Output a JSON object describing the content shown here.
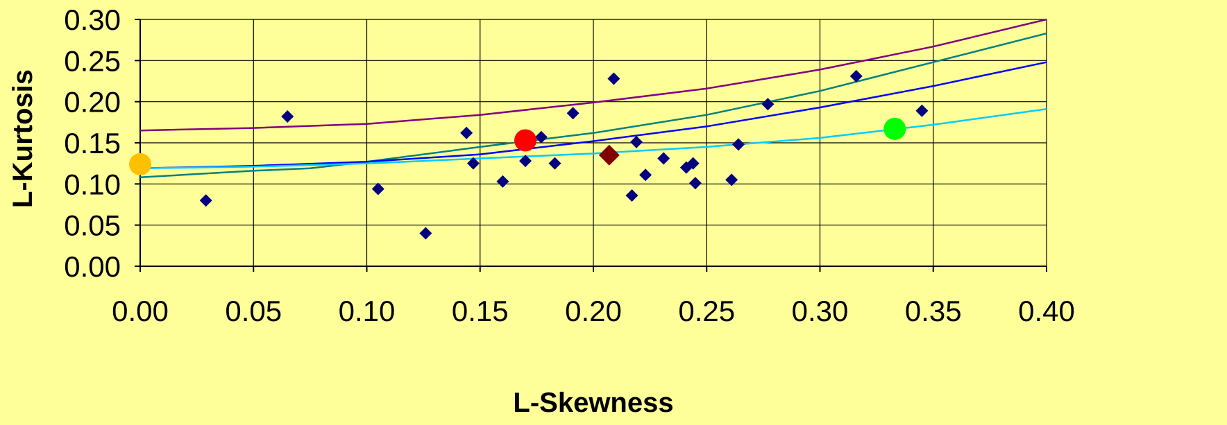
{
  "chart_data": {
    "type": "scatter",
    "xlabel": "L-Skewness",
    "ylabel": "L-Kurtosis",
    "xlim": [
      0,
      0.4
    ],
    "ylim": [
      0,
      0.3
    ],
    "x_ticks": [
      "0.00",
      "0.05",
      "0.10",
      "0.15",
      "0.20",
      "0.25",
      "0.30",
      "0.35",
      "0.40"
    ],
    "y_ticks": [
      "0.00",
      "0.05",
      "0.10",
      "0.15",
      "0.20",
      "0.25",
      "0.30"
    ],
    "grid": true,
    "colors": {
      "background": "#FFFF99",
      "plot_background": "#FFFF99",
      "grid": "#000000",
      "points": "#000080"
    },
    "curves": [
      {
        "color": "#800080",
        "x": [
          0,
          0.05,
          0.1,
          0.15,
          0.2,
          0.25,
          0.3,
          0.35,
          0.4
        ],
        "y": [
          0.165,
          0.168,
          0.173,
          0.184,
          0.199,
          0.216,
          0.239,
          0.267,
          0.3
        ]
      },
      {
        "color": "#008080",
        "x": [
          0,
          0.05,
          0.075,
          0.1,
          0.15,
          0.2,
          0.25,
          0.3,
          0.35,
          0.4
        ],
        "y": [
          0.108,
          0.116,
          0.119,
          0.127,
          0.145,
          0.162,
          0.184,
          0.213,
          0.248,
          0.283
        ]
      },
      {
        "color": "#0000FF",
        "x": [
          0,
          0.05,
          0.1,
          0.15,
          0.2,
          0.25,
          0.3,
          0.35,
          0.4
        ],
        "y": [
          0.119,
          0.122,
          0.127,
          0.136,
          0.152,
          0.17,
          0.193,
          0.219,
          0.248
        ]
      },
      {
        "color": "#00CCFF",
        "x": [
          0,
          0.05,
          0.1,
          0.15,
          0.2,
          0.25,
          0.3,
          0.35,
          0.4
        ],
        "y": [
          0.119,
          0.121,
          0.125,
          0.131,
          0.137,
          0.145,
          0.156,
          0.172,
          0.191
        ]
      }
    ],
    "points": [
      {
        "x": 0.029,
        "y": 0.08
      },
      {
        "x": 0.065,
        "y": 0.182
      },
      {
        "x": 0.105,
        "y": 0.094
      },
      {
        "x": 0.126,
        "y": 0.04
      },
      {
        "x": 0.144,
        "y": 0.162
      },
      {
        "x": 0.147,
        "y": 0.125
      },
      {
        "x": 0.16,
        "y": 0.103
      },
      {
        "x": 0.17,
        "y": 0.128
      },
      {
        "x": 0.177,
        "y": 0.157
      },
      {
        "x": 0.183,
        "y": 0.125
      },
      {
        "x": 0.191,
        "y": 0.186
      },
      {
        "x": 0.209,
        "y": 0.228
      },
      {
        "x": 0.217,
        "y": 0.086
      },
      {
        "x": 0.219,
        "y": 0.151
      },
      {
        "x": 0.223,
        "y": 0.111
      },
      {
        "x": 0.231,
        "y": 0.131
      },
      {
        "x": 0.241,
        "y": 0.12
      },
      {
        "x": 0.244,
        "y": 0.125
      },
      {
        "x": 0.245,
        "y": 0.101
      },
      {
        "x": 0.261,
        "y": 0.105
      },
      {
        "x": 0.264,
        "y": 0.148
      },
      {
        "x": 0.277,
        "y": 0.197
      },
      {
        "x": 0.316,
        "y": 0.231
      },
      {
        "x": 0.345,
        "y": 0.189
      }
    ],
    "highlights": [
      {
        "x": 0.0,
        "y": 0.124,
        "color": "#FFC000",
        "shape": "circle"
      },
      {
        "x": 0.17,
        "y": 0.153,
        "color": "#FF0000",
        "shape": "circle"
      },
      {
        "x": 0.207,
        "y": 0.135,
        "color": "#800000",
        "shape": "diamond"
      },
      {
        "x": 0.333,
        "y": 0.167,
        "color": "#00FF00",
        "shape": "circle"
      }
    ]
  }
}
